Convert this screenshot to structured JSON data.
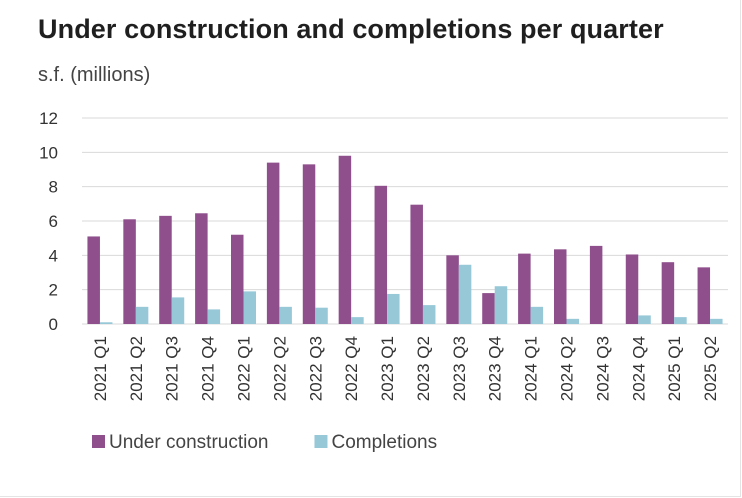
{
  "chart_data": {
    "type": "bar",
    "title": "Under construction and completions per quarter",
    "ylabel": "s.f. (millions)",
    "xlabel": "",
    "ylim": [
      0,
      12
    ],
    "yticks": [
      0,
      2,
      4,
      6,
      8,
      10,
      12
    ],
    "grid": true,
    "legend_position": "bottom-left",
    "categories": [
      "2021 Q1",
      "2021 Q2",
      "2021 Q3",
      "2021 Q4",
      "2022 Q1",
      "2022 Q2",
      "2022 Q3",
      "2022 Q4",
      "2023 Q1",
      "2023 Q2",
      "2023 Q3",
      "2023 Q4",
      "2024 Q1",
      "2024 Q2",
      "2024 Q3",
      "2024 Q4",
      "2025 Q1",
      "2025 Q2"
    ],
    "series": [
      {
        "name": "Under construction",
        "color": "#8e4f8c",
        "values": [
          5.1,
          6.1,
          6.3,
          6.45,
          5.2,
          9.4,
          9.3,
          9.8,
          8.05,
          6.95,
          4.0,
          1.8,
          4.1,
          4.35,
          4.55,
          4.05,
          3.6,
          3.3
        ]
      },
      {
        "name": "Completions",
        "color": "#96c8d8",
        "values": [
          0.1,
          1.0,
          1.55,
          0.85,
          1.9,
          1.0,
          0.95,
          0.4,
          1.75,
          1.1,
          3.45,
          2.2,
          1.0,
          0.3,
          0.0,
          0.5,
          0.4,
          0.3
        ]
      }
    ]
  }
}
